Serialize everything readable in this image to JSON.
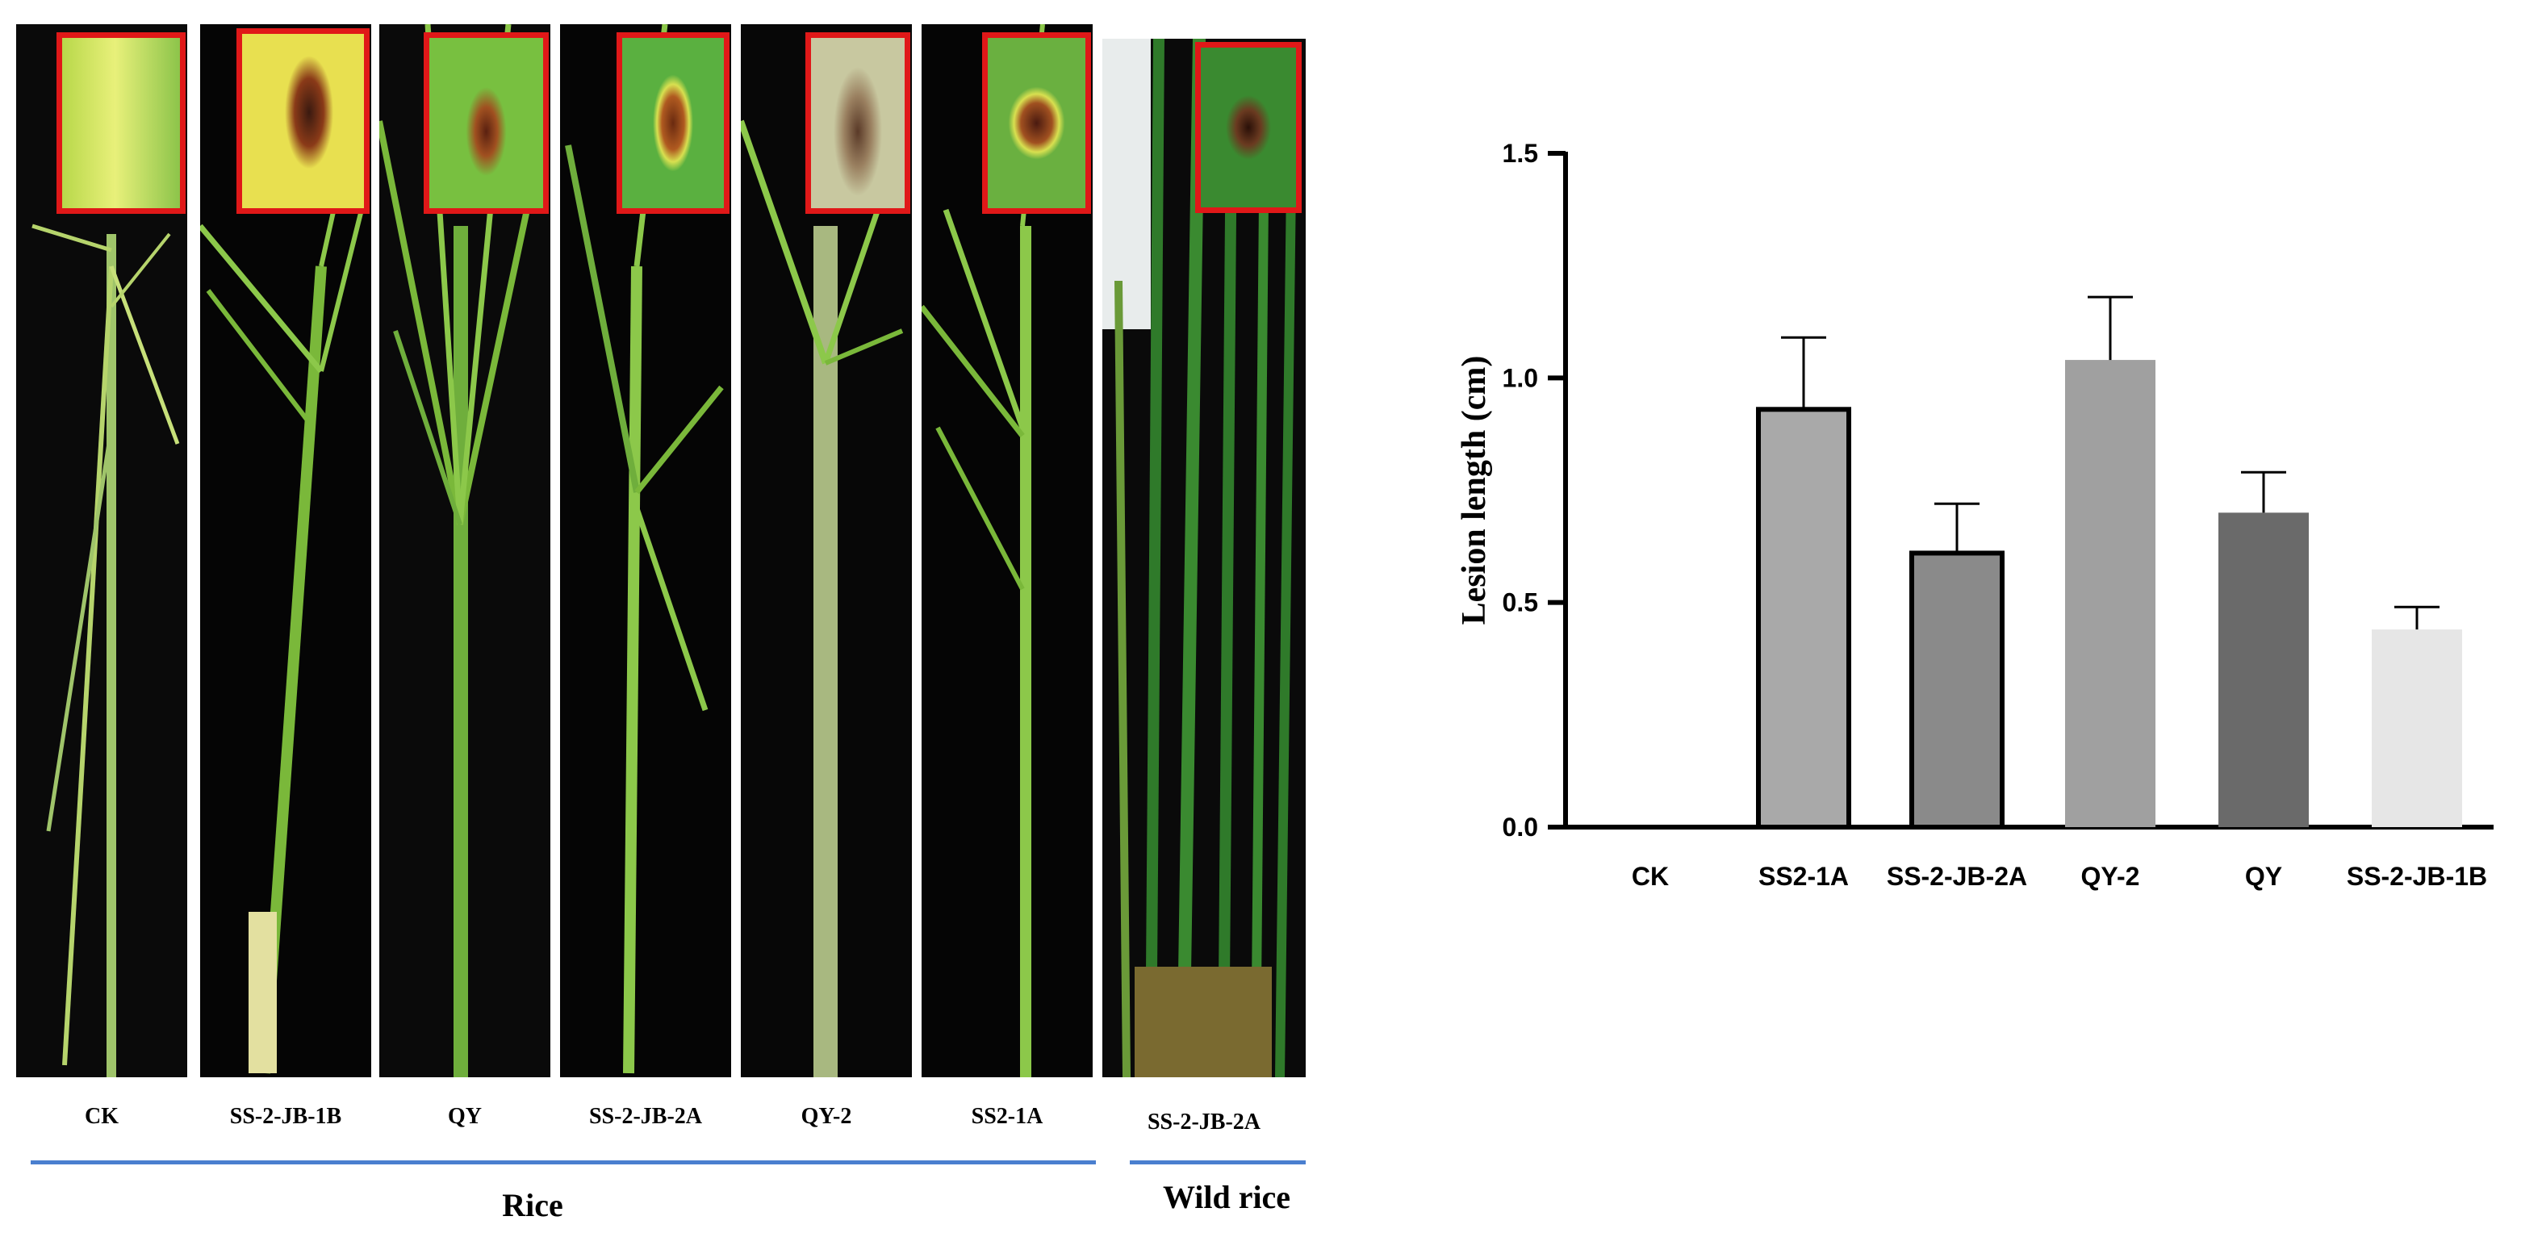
{
  "photo_panel": {
    "plant_labels": [
      "CK",
      "SS-2-JB-1B",
      "QY",
      "SS-2-JB-2A",
      "QY-2",
      "SS2-1A",
      "SS-2-JB-2A"
    ],
    "groups": [
      "Rice",
      "Wild rice"
    ],
    "colors": {
      "inset_border": "#e01818",
      "group_line": "#4a7fcf",
      "panel_bg": "#000000"
    }
  },
  "chart_data": {
    "type": "bar",
    "categories": [
      "CK",
      "SS2-1A",
      "SS-2-JB-2A",
      "QY-2",
      "QY",
      "SS-2-JB-1B"
    ],
    "values": [
      0,
      0.93,
      0.61,
      1.04,
      0.7,
      0.44
    ],
    "errors": [
      0,
      0.16,
      0.11,
      0.14,
      0.09,
      0.05
    ],
    "bar_colors": [
      "#a9a9a9",
      "#a9a9a9",
      "#8a8a8a",
      "#a0a0a0",
      "#6a6a6a",
      "#e6e6e6"
    ],
    "bar_outlined": [
      false,
      true,
      true,
      false,
      false,
      false
    ],
    "ylabel": "Lesion length (cm)",
    "xlabel": "",
    "ylim": [
      0,
      1.5
    ],
    "yticks": [
      "0.0",
      "0.5",
      "1.0",
      "1.5"
    ],
    "ytick_values": [
      0,
      0.5,
      1.0,
      1.5
    ],
    "grid": false
  }
}
